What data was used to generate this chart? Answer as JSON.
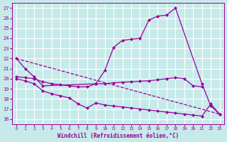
{
  "xlabel": "Windchill (Refroidissement éolien,°C)",
  "bg_color": "#c6eaea",
  "grid_color": "#ffffff",
  "line_color": "#990099",
  "xlim": [
    -0.5,
    23.5
  ],
  "ylim": [
    15.5,
    27.5
  ],
  "yticks": [
    16,
    17,
    18,
    19,
    20,
    21,
    22,
    23,
    24,
    25,
    26,
    27
  ],
  "xticks": [
    0,
    1,
    2,
    3,
    4,
    5,
    6,
    7,
    8,
    9,
    10,
    11,
    12,
    13,
    14,
    15,
    16,
    17,
    18,
    19,
    20,
    21,
    22,
    23
  ],
  "series_up": {
    "x": [
      0,
      1,
      2,
      3,
      9,
      10,
      11,
      12,
      13,
      14,
      15,
      16,
      17,
      18,
      21,
      22,
      23
    ],
    "y": [
      22,
      21,
      20.2,
      19.3,
      19.5,
      20.8,
      23.1,
      23.8,
      23.9,
      24.0,
      25.8,
      26.2,
      26.3,
      27.0,
      19.5,
      17.3,
      16.5
    ]
  },
  "series_flat": {
    "x": [
      0,
      1,
      2,
      3,
      4,
      5,
      6,
      7,
      8,
      9,
      10,
      11,
      12,
      13,
      14,
      15,
      16,
      17,
      18,
      19,
      20,
      21
    ],
    "y": [
      20.2,
      20.1,
      20.0,
      19.7,
      19.5,
      19.4,
      19.3,
      19.2,
      19.2,
      19.5,
      19.5,
      19.6,
      19.65,
      19.7,
      19.75,
      19.8,
      19.9,
      20.0,
      20.1,
      20.0,
      19.3,
      19.2
    ]
  },
  "series_down": {
    "x": [
      0,
      1,
      2,
      3,
      4,
      5,
      6,
      7,
      8,
      9,
      10,
      11,
      12,
      13,
      14,
      15,
      16,
      17,
      18,
      19,
      20,
      21,
      22,
      23
    ],
    "y": [
      20.0,
      19.8,
      19.5,
      18.8,
      18.5,
      18.3,
      18.1,
      17.5,
      17.1,
      17.6,
      17.4,
      17.3,
      17.2,
      17.1,
      17.0,
      16.9,
      16.8,
      16.7,
      16.6,
      16.5,
      16.4,
      16.3,
      17.5,
      16.5
    ]
  },
  "series_ref": {
    "x": [
      0,
      23
    ],
    "y": [
      22,
      16.5
    ]
  }
}
